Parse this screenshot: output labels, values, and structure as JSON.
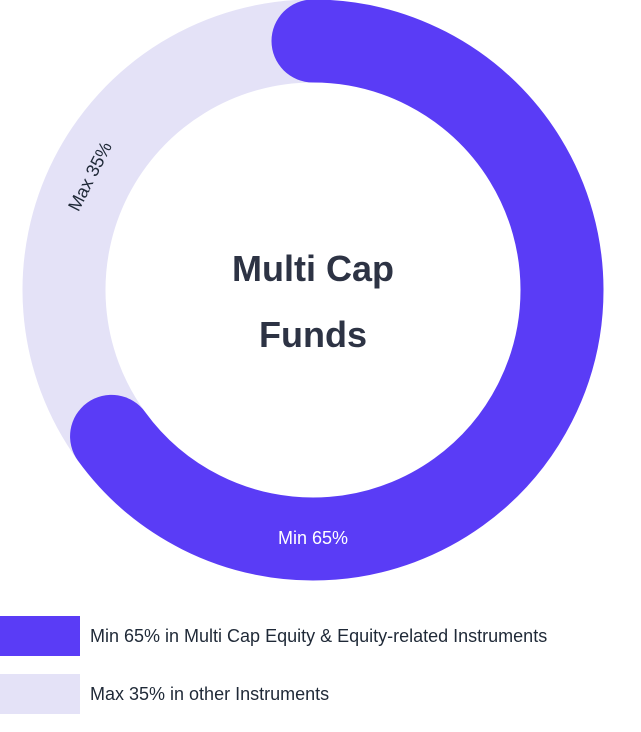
{
  "chart_data": {
    "type": "pie",
    "title": "Multi Cap Funds",
    "values": [
      65,
      35
    ],
    "value_labels": [
      "Min 65%",
      "Max 35%"
    ],
    "colors": [
      "#5a3cf6",
      "#e4e2f7"
    ],
    "categories": [
      "Min 65% in Multi Cap Equity & Equity-related Instruments",
      "Max 35% in other Instruments"
    ]
  }
}
